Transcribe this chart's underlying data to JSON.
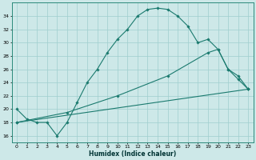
{
  "xlabel": "Humidex (Indice chaleur)",
  "background_color": "#cde8e8",
  "grid_color": "#9ecece",
  "line_color": "#1a7a6e",
  "xlim": [
    -0.5,
    23.5
  ],
  "ylim": [
    15.0,
    36.0
  ],
  "yticks": [
    16,
    18,
    20,
    22,
    24,
    26,
    28,
    30,
    32,
    34
  ],
  "xticks": [
    0,
    1,
    2,
    3,
    4,
    5,
    6,
    7,
    8,
    9,
    10,
    11,
    12,
    13,
    14,
    15,
    16,
    17,
    18,
    19,
    20,
    21,
    22,
    23
  ],
  "line1_x": [
    0,
    1,
    2,
    3,
    4,
    5,
    6,
    7,
    8,
    9,
    10,
    11,
    12,
    13,
    14,
    15,
    16,
    17,
    18,
    19,
    20,
    21,
    22,
    23
  ],
  "line1_y": [
    20,
    18.5,
    18,
    18,
    16,
    18,
    21,
    24,
    26,
    28.5,
    30.5,
    32,
    34,
    35.0,
    35.2,
    35.0,
    34,
    32.5,
    30,
    30.5,
    29,
    26,
    24.5,
    23
  ],
  "line2_x": [
    0,
    23
  ],
  "line2_y": [
    18.0,
    23.0
  ],
  "line3_x": [
    0,
    5,
    10,
    15,
    19,
    20,
    21,
    22,
    23
  ],
  "line3_y": [
    18,
    19.5,
    22,
    25,
    28.5,
    29,
    26,
    25,
    23
  ]
}
